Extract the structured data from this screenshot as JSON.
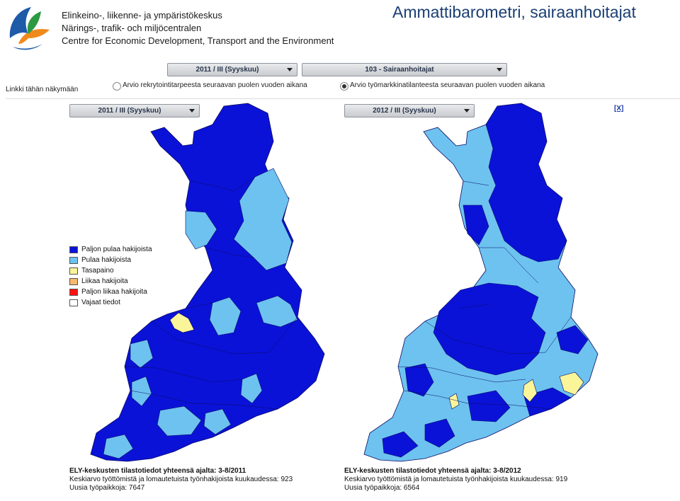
{
  "header": {
    "org_line_1": "Elinkeino-, liikenne- ja ympäristökeskus",
    "org_line_2": "Närings-, trafik- och miljöcentralen",
    "org_line_3": "Centre for Economic Development, Transport and the Environment",
    "page_title": "Ammattibarometri, sairaanhoitajat"
  },
  "controls": {
    "period_select": "2011 / III (Syyskuu)",
    "occupation_select": "103 - Sairaanhoitajat",
    "link_here": "Linkki tähän näkymään",
    "radio_options": [
      {
        "label": "Arvio rekrytointitarpeesta seuraavan puolen vuoden aikana",
        "selected": false
      },
      {
        "label": "Arvio työmarkkinatilanteesta seuraavan puolen vuoden aikana",
        "selected": true
      }
    ],
    "close_link": "[X]"
  },
  "maps": [
    {
      "period_select": "2011 / III (Syyskuu)"
    },
    {
      "period_select": "2012 / III (Syyskuu)"
    }
  ],
  "legend": [
    {
      "label": "Paljon pulaa hakijoista",
      "color": "#0a12d8"
    },
    {
      "label": "Pulaa hakijoista",
      "color": "#6dc2f0"
    },
    {
      "label": "Tasapaino",
      "color": "#fbf59a"
    },
    {
      "label": "Liikaa hakijoita",
      "color": "#f7b870"
    },
    {
      "label": "Paljon liikaa hakijoita",
      "color": "#ff1010"
    },
    {
      "label": "Vajaat tiedot",
      "color": "#ffffff"
    }
  ],
  "stats": [
    {
      "title": "ELY-keskusten tilastotiedot yhteensä ajalta: 3-8/2011",
      "line_1": "Keskiarvo työttömistä ja lomautetuista työnhakijoista kuukaudessa: 923",
      "line_2": "Uusia työpaikkoja: 7647"
    },
    {
      "title": "ELY-keskusten tilastotiedot yhteensä ajalta: 3-8/2012",
      "line_1": "Keskiarvo työttömistä ja lomautetuista työnhakijoista kuukaudessa: 919",
      "line_2": "Uusia työpaikkoja: 6564"
    }
  ],
  "colors": {
    "title_blue": "#1b3f73",
    "dark_blue": "#0a12d8",
    "light_blue": "#6dc2f0",
    "yellow": "#fbf59a"
  }
}
